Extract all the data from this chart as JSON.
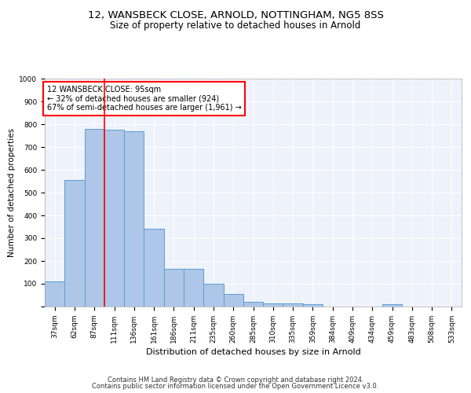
{
  "title": "12, WANSBECK CLOSE, ARNOLD, NOTTINGHAM, NG5 8SS",
  "subtitle": "Size of property relative to detached houses in Arnold",
  "xlabel": "Distribution of detached houses by size in Arnold",
  "ylabel": "Number of detached properties",
  "categories": [
    "37sqm",
    "62sqm",
    "87sqm",
    "111sqm",
    "136sqm",
    "161sqm",
    "186sqm",
    "211sqm",
    "235sqm",
    "260sqm",
    "285sqm",
    "310sqm",
    "335sqm",
    "359sqm",
    "384sqm",
    "409sqm",
    "434sqm",
    "459sqm",
    "483sqm",
    "508sqm",
    "533sqm"
  ],
  "values": [
    110,
    555,
    780,
    775,
    770,
    340,
    165,
    165,
    100,
    55,
    20,
    15,
    15,
    10,
    0,
    0,
    0,
    10,
    0,
    0,
    0
  ],
  "bar_color": "#aec6e8",
  "bar_edge_color": "#5a9fd4",
  "vline_x_index": 2.5,
  "vline_color": "red",
  "annotation_text": "12 WANSBECK CLOSE: 95sqm\n← 32% of detached houses are smaller (924)\n67% of semi-detached houses are larger (1,961) →",
  "annotation_box_color": "white",
  "annotation_box_edge_color": "red",
  "ylim": [
    0,
    1000
  ],
  "yticks": [
    0,
    100,
    200,
    300,
    400,
    500,
    600,
    700,
    800,
    900,
    1000
  ],
  "footer_line1": "Contains HM Land Registry data © Crown copyright and database right 2024.",
  "footer_line2": "Contains public sector information licensed under the Open Government Licence v3.0.",
  "bg_color": "#eef2fb",
  "grid_color": "#ffffff",
  "title_fontsize": 9.5,
  "subtitle_fontsize": 8.5,
  "xlabel_fontsize": 8,
  "ylabel_fontsize": 7.5,
  "tick_fontsize": 6.5,
  "annot_fontsize": 7,
  "footer_fontsize": 6
}
